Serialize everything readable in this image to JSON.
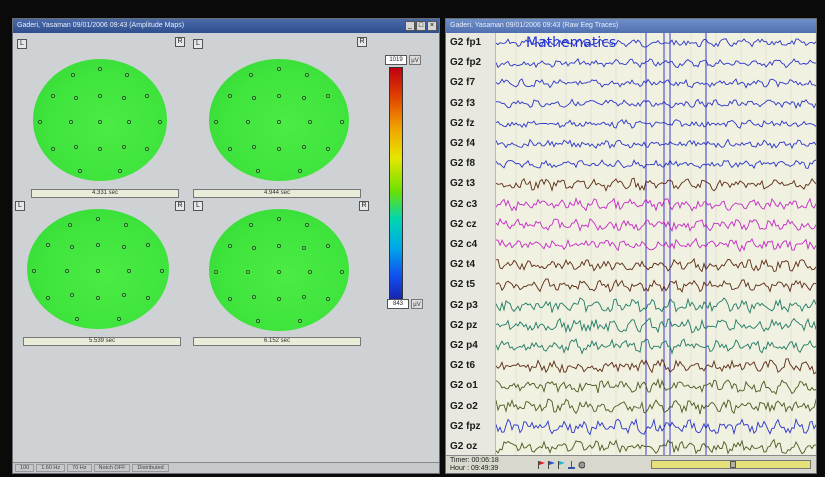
{
  "left_window": {
    "title": "Gaderi, Yasaman 09/01/2006 09:43 (Amplitude Maps)",
    "win_buttons": [
      "_",
      "□",
      "×"
    ],
    "maps": [
      {
        "left_tag": "L",
        "right_tag": "R",
        "time": "4.331 sec"
      },
      {
        "left_tag": "L",
        "right_tag": "R",
        "time": "4.944 sec"
      },
      {
        "left_tag": "L",
        "right_tag": "R",
        "time": "5.539 sec"
      },
      {
        "left_tag": "L",
        "right_tag": "R",
        "time": "6.152 sec"
      }
    ],
    "colorbar": {
      "max": "1019",
      "min": "843",
      "unit": "µV"
    },
    "status": [
      "100",
      "1.60 Hz",
      "70 Hz",
      "Notch OFF",
      "Distributed"
    ]
  },
  "right_window": {
    "title": "Gaderi, Yasaman 09/01/2006 09:43 (Raw Eeg Traces)",
    "overlay": "Mathematics",
    "channels": [
      {
        "label": "G2 fp1",
        "color": "#2a35c8"
      },
      {
        "label": "G2 fp2",
        "color": "#2a35c8"
      },
      {
        "label": "G2 f7",
        "color": "#2a35c8"
      },
      {
        "label": "G2 f3",
        "color": "#2a35c8"
      },
      {
        "label": "G2 fz",
        "color": "#2a35c8"
      },
      {
        "label": "G2 f4",
        "color": "#2a35c8"
      },
      {
        "label": "G2 f8",
        "color": "#2a35c8"
      },
      {
        "label": "G2 t3",
        "color": "#5a2a12"
      },
      {
        "label": "G2 c3",
        "color": "#c42ac4"
      },
      {
        "label": "G2 cz",
        "color": "#c42ac4"
      },
      {
        "label": "G2 c4",
        "color": "#c42ac4"
      },
      {
        "label": "G2 t4",
        "color": "#5a2a12"
      },
      {
        "label": "G2 t5",
        "color": "#5a2a12"
      },
      {
        "label": "G2 p3",
        "color": "#1f7a63"
      },
      {
        "label": "G2 pz",
        "color": "#1f7a63"
      },
      {
        "label": "G2 p4",
        "color": "#1f7a63"
      },
      {
        "label": "G2 t6",
        "color": "#5a2a12"
      },
      {
        "label": "G2 o1",
        "color": "#4a5a20"
      },
      {
        "label": "G2 o2",
        "color": "#4a5a20"
      },
      {
        "label": "G2 fpz",
        "color": "#2a35c8"
      },
      {
        "label": "G2 oz",
        "color": "#4a5a20"
      }
    ],
    "timer": "Timer: 00:06:18",
    "hour": "Hour : 09:49:39"
  }
}
